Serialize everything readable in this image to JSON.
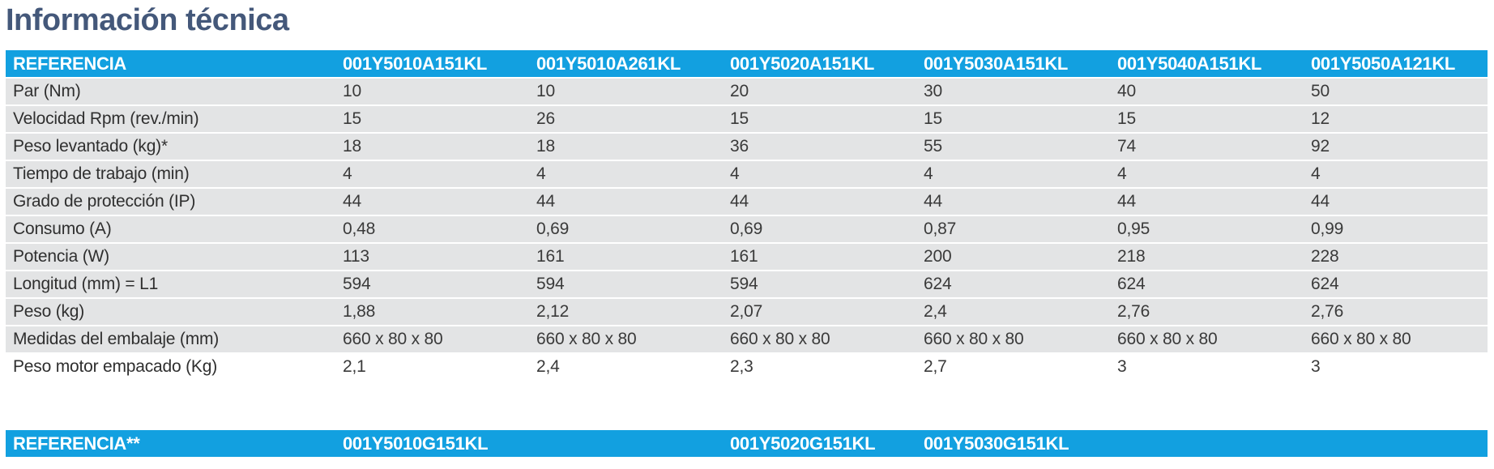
{
  "title": "Información técnica",
  "table1": {
    "header": [
      "REFERENCIA",
      "001Y5010A151KL",
      "001Y5010A261KL",
      "001Y5020A151KL",
      "001Y5030A151KL",
      "001Y5040A151KL",
      "001Y5050A121KL"
    ],
    "rows": [
      [
        "Par (Nm)",
        "10",
        "10",
        "20",
        "30",
        "40",
        "50"
      ],
      [
        "Velocidad Rpm (rev./min)",
        "15",
        "26",
        "15",
        "15",
        "15",
        "12"
      ],
      [
        "Peso levantado (kg)*",
        "18",
        "18",
        "36",
        "55",
        "74",
        "92"
      ],
      [
        "Tiempo de trabajo (min)",
        "4",
        "4",
        "4",
        "4",
        "4",
        "4"
      ],
      [
        "Grado de protección (IP)",
        "44",
        "44",
        "44",
        "44",
        "44",
        "44"
      ],
      [
        "Consumo (A)",
        "0,48",
        "0,69",
        "0,69",
        "0,87",
        "0,95",
        "0,99"
      ],
      [
        "Potencia (W)",
        "113",
        "161",
        "161",
        "200",
        "218",
        "228"
      ],
      [
        "Longitud (mm) = L1",
        "594",
        "594",
        "594",
        "624",
        "624",
        "624"
      ],
      [
        "Peso (kg)",
        "1,88",
        "2,12",
        "2,07",
        "2,4",
        "2,76",
        "2,76"
      ],
      [
        "Medidas del embalaje (mm)",
        "660 x 80 x 80",
        "660 x 80 x 80",
        "660 x 80 x 80",
        "660 x 80 x 80",
        "660 x 80 x 80",
        "660 x 80 x 80"
      ],
      [
        "Peso motor empacado (Kg)",
        "2,1",
        "2,4",
        "2,3",
        "2,7",
        "3",
        "3"
      ]
    ]
  },
  "table2": {
    "header": [
      "REFERENCIA**",
      "001Y5010G151KL",
      "",
      "001Y5020G151KL",
      "001Y5030G151KL",
      "",
      ""
    ]
  }
}
